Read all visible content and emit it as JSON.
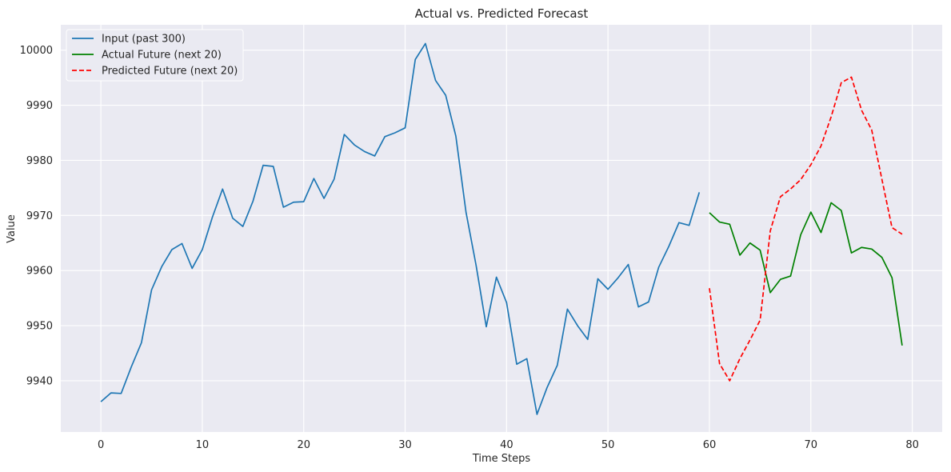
{
  "chart_data": {
    "type": "line",
    "title": "Actual vs. Predicted Forecast",
    "xlabel": "Time Steps",
    "ylabel": "Value",
    "xlim": [
      -3.95,
      82.95
    ],
    "ylim": [
      9930.7,
      10004.6
    ],
    "xticks": [
      0,
      10,
      20,
      30,
      40,
      50,
      60,
      70,
      80
    ],
    "yticks": [
      9940,
      9950,
      9960,
      9970,
      9980,
      9990,
      10000
    ],
    "grid": true,
    "legend_position": "top-left",
    "colors": {
      "background": "#eaeaf2",
      "grid": "#ffffff",
      "input": "#1f77b4",
      "actual": "#008000",
      "predicted": "#ff0000"
    },
    "series": [
      {
        "name": "Input (past 300)",
        "style": "solid",
        "x": [
          0,
          1,
          2,
          3,
          4,
          5,
          6,
          7,
          8,
          9,
          10,
          11,
          12,
          13,
          14,
          15,
          16,
          17,
          18,
          19,
          20,
          21,
          22,
          23,
          24,
          25,
          26,
          27,
          28,
          29,
          30,
          31,
          32,
          33,
          34,
          35,
          36,
          37,
          38,
          39,
          40,
          41,
          42,
          43,
          44,
          45,
          46,
          47,
          48,
          49,
          50,
          51,
          52,
          53,
          54,
          55,
          56,
          57,
          58,
          59
        ],
        "values": [
          9936.2,
          9937.8,
          9937.7,
          9942.5,
          9946.9,
          9956.5,
          9960.7,
          9963.8,
          9964.9,
          9960.4,
          9963.8,
          9969.7,
          9974.8,
          9969.5,
          9968.0,
          9972.6,
          9979.1,
          9978.9,
          9971.5,
          9972.4,
          9972.5,
          9976.7,
          9973.1,
          9976.6,
          9984.7,
          9982.8,
          9981.6,
          9980.8,
          9984.3,
          9985.0,
          9985.9,
          9998.3,
          10001.2,
          9994.5,
          9991.8,
          9984.4,
          9970.6,
          9960.9,
          9949.8,
          9958.8,
          9954.2,
          9943.0,
          9944.0,
          9933.9,
          9938.8,
          9942.8,
          9953.0,
          9950.0,
          9947.5,
          9958.5,
          9956.6,
          9958.7,
          9961.1,
          9953.4,
          9954.3,
          9960.6,
          9964.4,
          9968.7,
          9968.2,
          9974.2
        ]
      },
      {
        "name": "Actual Future (next 20)",
        "style": "solid",
        "x": [
          60,
          61,
          62,
          63,
          64,
          65,
          66,
          67,
          68,
          69,
          70,
          71,
          72,
          73,
          74,
          75,
          76,
          77,
          78,
          79
        ],
        "values": [
          9970.5,
          9968.8,
          9968.4,
          9962.8,
          9965.0,
          9963.7,
          9956.0,
          9958.4,
          9959.0,
          9966.5,
          9970.6,
          9966.9,
          9972.3,
          9970.9,
          9963.2,
          9964.2,
          9963.9,
          9962.4,
          9958.7,
          9946.4
        ]
      },
      {
        "name": "Predicted Future (next 20)",
        "style": "dashed",
        "x": [
          60,
          61,
          62,
          63,
          64,
          65,
          66,
          67,
          68,
          69,
          70,
          71,
          72,
          73,
          74,
          75,
          76,
          77,
          78,
          79
        ],
        "values": [
          9956.8,
          9943.1,
          9940.0,
          9944.0,
          9947.4,
          9951.0,
          9967.2,
          9973.4,
          9974.8,
          9976.5,
          9979.2,
          9982.6,
          9987.9,
          9994.1,
          9995.1,
          9989.1,
          9985.5,
          9976.6,
          9967.8,
          9966.6
        ]
      }
    ]
  }
}
